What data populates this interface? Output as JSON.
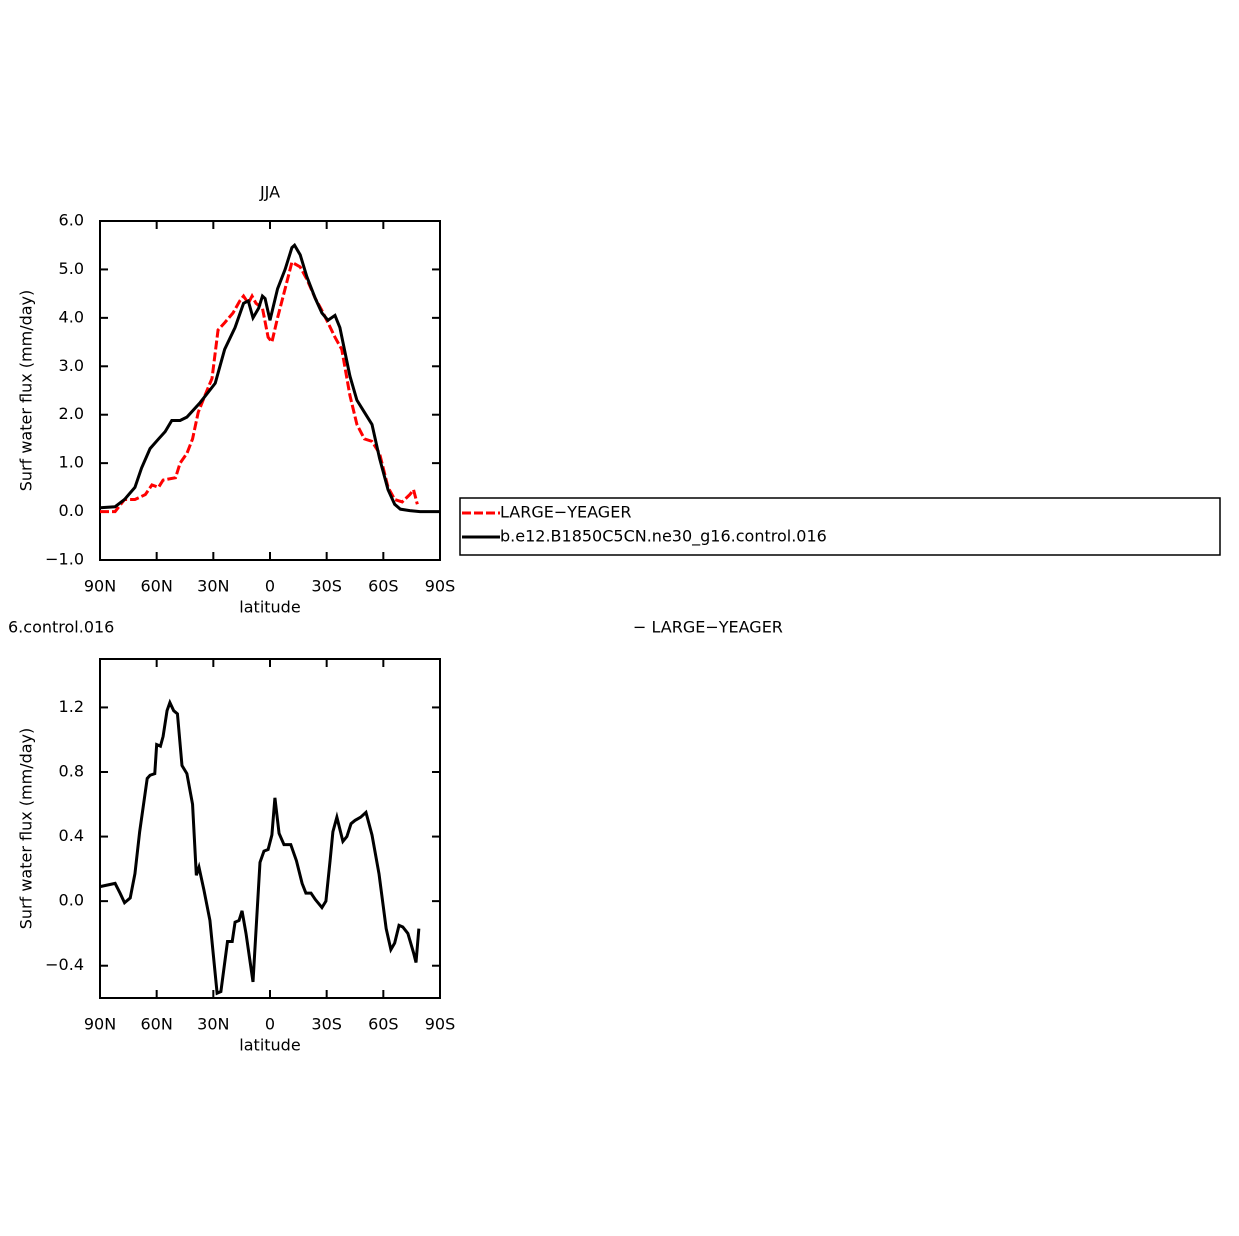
{
  "chart_data": [
    {
      "type": "line",
      "title": "JJA",
      "xlabel": "latitude",
      "ylabel": "Surf water flux (mm/day)",
      "xlim": [
        90,
        -90
      ],
      "xticks": [
        {
          "value": 90,
          "label": "90N"
        },
        {
          "value": 60,
          "label": "60N"
        },
        {
          "value": 30,
          "label": "30N"
        },
        0,
        {
          "value": -30,
          "label": "30S"
        },
        {
          "value": -60,
          "label": "60S"
        },
        {
          "value": -90,
          "label": "90S"
        }
      ],
      "ylim": [
        -1,
        6
      ],
      "yticks": [
        {
          "value": -1,
          "label": "−1.0"
        },
        {
          "value": 0,
          "label": "0.0"
        },
        {
          "value": 1,
          "label": "1.0"
        },
        {
          "value": 2,
          "label": "2.0"
        },
        {
          "value": 3,
          "label": "3.0"
        },
        {
          "value": 4,
          "label": "4.0"
        },
        {
          "value": 5,
          "label": "5.0"
        },
        {
          "value": 6,
          "label": "6.0"
        }
      ],
      "series": [
        {
          "name": "LARGE−YEAGER",
          "color": "#ff0000",
          "dashed": true,
          "x": [
            90,
            82,
            77,
            71.5,
            66,
            62.5,
            59,
            56.6,
            50,
            47.6,
            44,
            41,
            38,
            34.4,
            30.7,
            27.5,
            24,
            19.6,
            16,
            14,
            11.5,
            9.5,
            7.4,
            4,
            1,
            -1,
            -4,
            -8,
            -11.6,
            -16,
            -19.5,
            -24,
            -27.5,
            -30.7,
            -34.4,
            -38,
            -42.3,
            -46,
            -50,
            -54,
            -58,
            -62.5,
            -66,
            -70,
            -74,
            -76,
            -78
          ],
          "values": [
            0,
            0,
            0.25,
            0.25,
            0.35,
            0.55,
            0.5,
            0.65,
            0.7,
            1.0,
            1.2,
            1.5,
            2.05,
            2.4,
            2.75,
            3.75,
            3.9,
            4.1,
            4.35,
            4.45,
            4.3,
            4.45,
            4.3,
            4.2,
            3.6,
            3.5,
            4.0,
            4.6,
            5.15,
            5.05,
            4.8,
            4.4,
            4.15,
            3.9,
            3.6,
            3.35,
            2.4,
            1.8,
            1.5,
            1.45,
            1.2,
            0.5,
            0.25,
            0.2,
            0.35,
            0.45,
            0.15
          ]
        },
        {
          "name": "b.e12.B1850C5CN.ne30_g16.control.016",
          "color": "#000000",
          "dashed": false,
          "x": [
            90,
            82,
            77,
            71.5,
            68,
            63.5,
            59,
            55.5,
            52,
            47.6,
            44,
            37,
            29,
            24,
            18.5,
            14,
            11.5,
            9,
            6,
            4,
            2.6,
            0,
            -4,
            -8,
            -11.6,
            -13,
            -16,
            -19.5,
            -24,
            -27.5,
            -30.7,
            -34.4,
            -37,
            -42.3,
            -46,
            -50,
            -54,
            -58,
            -62.5,
            -66,
            -69,
            -74,
            -79.4,
            -90
          ],
          "values": [
            0.08,
            0.1,
            0.25,
            0.5,
            0.9,
            1.3,
            1.5,
            1.65,
            1.88,
            1.88,
            1.95,
            2.25,
            2.65,
            3.35,
            3.8,
            4.3,
            4.35,
            4.0,
            4.2,
            4.45,
            4.4,
            3.95,
            4.6,
            5.0,
            5.45,
            5.5,
            5.3,
            4.85,
            4.4,
            4.1,
            3.95,
            4.05,
            3.8,
            2.8,
            2.3,
            2.05,
            1.8,
            1.1,
            0.45,
            0.15,
            0.05,
            0.02,
            0,
            0
          ]
        }
      ],
      "legend": "right"
    },
    {
      "type": "line",
      "title_left": "6.control.016",
      "title_right": "− LARGE−YEAGER",
      "xlabel": "latitude",
      "ylabel": "Surf water flux (mm/day)",
      "xlim": [
        90,
        -90
      ],
      "xticks": [
        {
          "value": 90,
          "label": "90N"
        },
        {
          "value": 60,
          "label": "60N"
        },
        {
          "value": 30,
          "label": "30N"
        },
        0,
        {
          "value": -30,
          "label": "30S"
        },
        {
          "value": -60,
          "label": "60S"
        },
        {
          "value": -90,
          "label": "90S"
        }
      ],
      "ylim": [
        -0.6,
        1.5
      ],
      "yticks": [
        {
          "value": -0.4,
          "label": "−0.4"
        },
        {
          "value": 0,
          "label": "0.0"
        },
        0.4,
        0.8,
        1.2
      ],
      "series": [
        {
          "color": "#000000",
          "dashed": false,
          "x": [
            90,
            82,
            79.4,
            77,
            74,
            71.5,
            69,
            65,
            63.5,
            61,
            60,
            58,
            56.6,
            54.5,
            53,
            51,
            49,
            46.6,
            44,
            41,
            39,
            37.6,
            35,
            31.8,
            28,
            26,
            22.5,
            20,
            18.5,
            16.4,
            14.8,
            12.7,
            9,
            5.3,
            3.2,
            1,
            -1,
            -2.6,
            -4.8,
            -7.4,
            -11,
            -14,
            -17,
            -19,
            -21.7,
            -24,
            -27.5,
            -29.6,
            -31.8,
            -33.3,
            -35.4,
            -38.6,
            -40.7,
            -42.9,
            -45,
            -48,
            -50.8,
            -54,
            -57.7,
            -61.5,
            -64,
            -66,
            -68.3,
            -70.3,
            -73,
            -76,
            -77.3,
            -78.8
          ],
          "values": [
            0.09,
            0.11,
            0.05,
            -0.01,
            0.02,
            0.17,
            0.43,
            0.76,
            0.78,
            0.79,
            0.97,
            0.96,
            1.02,
            1.18,
            1.23,
            1.18,
            1.16,
            0.84,
            0.79,
            0.6,
            0.16,
            0.21,
            0.07,
            -0.12,
            -0.57,
            -0.56,
            -0.25,
            -0.25,
            -0.13,
            -0.12,
            -0.06,
            -0.2,
            -0.5,
            0.24,
            0.31,
            0.32,
            0.41,
            0.64,
            0.42,
            0.35,
            0.35,
            0.25,
            0.11,
            0.05,
            0.05,
            0.01,
            -0.04,
            0,
            0.25,
            0.43,
            0.52,
            0.37,
            0.4,
            0.48,
            0.5,
            0.52,
            0.55,
            0.41,
            0.17,
            -0.17,
            -0.3,
            -0.26,
            -0.15,
            -0.16,
            -0.2,
            -0.32,
            -0.38,
            -0.17
          ]
        }
      ]
    }
  ]
}
